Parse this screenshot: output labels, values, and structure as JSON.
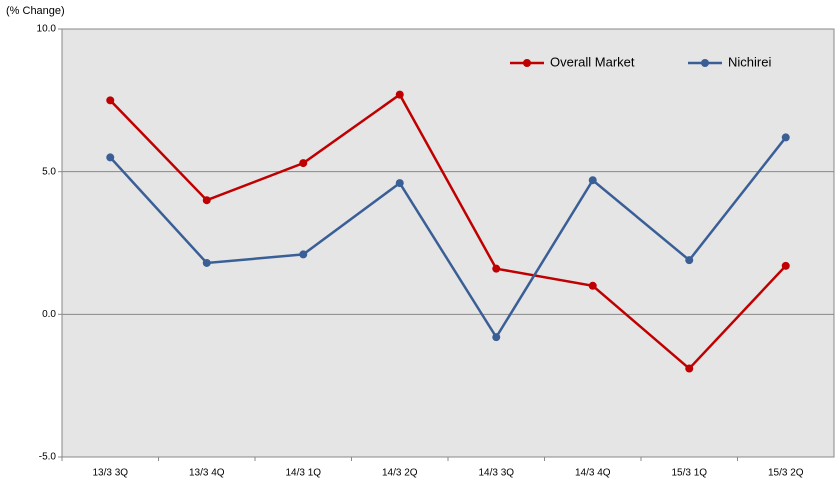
{
  "chart_data": {
    "type": "line",
    "y_axis_label": "(% Change)",
    "categories": [
      "13/3 3Q",
      "13/3 4Q",
      "14/3 1Q",
      "14/3 2Q",
      "14/3 3Q",
      "14/3 4Q",
      "15/3 1Q",
      "15/3 2Q"
    ],
    "series": [
      {
        "name": "Overall Market",
        "color": "#c00000",
        "values": [
          7.5,
          4.0,
          5.3,
          7.7,
          1.6,
          1.0,
          -1.9,
          1.7
        ]
      },
      {
        "name": "Nichirei",
        "color": "#3a5f96",
        "values": [
          5.5,
          1.8,
          2.1,
          4.6,
          -0.8,
          4.7,
          1.9,
          6.2
        ]
      }
    ],
    "ylim": [
      -5,
      10
    ],
    "yticks": [
      {
        "value": -5,
        "label": "-5.0"
      },
      {
        "value": 0,
        "label": "0.0"
      },
      {
        "value": 5,
        "label": "5.0"
      },
      {
        "value": 10,
        "label": "10.0"
      }
    ],
    "grid": true,
    "legend": "top-right"
  }
}
